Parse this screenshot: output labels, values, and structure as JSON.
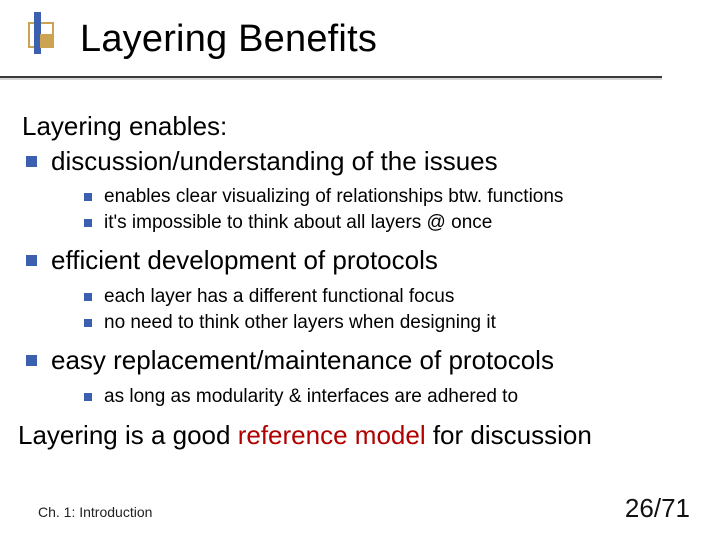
{
  "colors": {
    "bullet": "#3c5fb0",
    "title_rule": "#3a3a3a",
    "title_rule_shadow": "#d6d6d6",
    "decor_blue": "#3c5fb0",
    "decor_gold": "#cca352",
    "accent": "#b00000",
    "text": "#000000",
    "background": "#ffffff"
  },
  "fonts": {
    "title_size_pt": 38,
    "body_size_pt": 26,
    "sub_size_pt": 19,
    "footer_size_pt": 14,
    "pagenum_size_pt": 26,
    "family": "Verdana"
  },
  "title": "Layering Benefits",
  "intro": "Layering enables:",
  "items": [
    {
      "label": "discussion/understanding of the issues",
      "sub": [
        "enables clear visualizing of relationships btw. functions",
        "it's impossible to think about all layers @ once"
      ]
    },
    {
      "label": "efficient development of protocols",
      "sub": [
        "each layer has a different functional focus",
        "no need to think other layers when designing it"
      ]
    },
    {
      "label": "easy replacement/maintenance of protocols",
      "sub": [
        "as long as modularity & interfaces are adhered to"
      ]
    }
  ],
  "closing": {
    "pre": "Layering is a good ",
    "accent": "reference model",
    "post": " for discussion"
  },
  "footer": {
    "left": "Ch. 1: Introduction",
    "right": "26/71"
  }
}
